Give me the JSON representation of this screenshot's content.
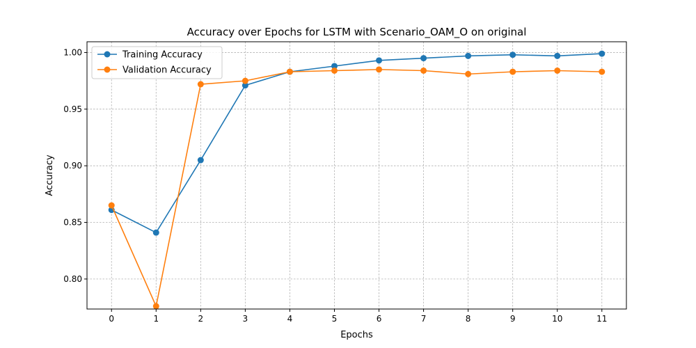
{
  "chart_data": {
    "type": "line",
    "title": "Accuracy over Epochs for LSTM with Scenario_OAM_O on original",
    "xlabel": "Epochs",
    "ylabel": "Accuracy",
    "x": [
      0,
      1,
      2,
      3,
      4,
      5,
      6,
      7,
      8,
      9,
      10,
      11
    ],
    "xlim": [
      -0.55,
      11.55
    ],
    "ylim": [
      0.7735,
      1.0095
    ],
    "yticks": [
      0.8,
      0.85,
      0.9,
      0.95,
      1.0
    ],
    "ytick_labels": [
      "0.80",
      "0.85",
      "0.90",
      "0.95",
      "1.00"
    ],
    "grid": true,
    "legend_position": "upper-left",
    "series": [
      {
        "name": "Training Accuracy",
        "color": "#1f77b4",
        "marker": "circle",
        "values": [
          0.861,
          0.841,
          0.905,
          0.971,
          0.983,
          0.988,
          0.993,
          0.995,
          0.997,
          0.998,
          0.997,
          0.999
        ]
      },
      {
        "name": "Validation Accuracy",
        "color": "#ff7f0e",
        "marker": "circle",
        "values": [
          0.865,
          0.776,
          0.972,
          0.975,
          0.983,
          0.984,
          0.985,
          0.984,
          0.981,
          0.983,
          0.984,
          0.983
        ]
      }
    ]
  }
}
